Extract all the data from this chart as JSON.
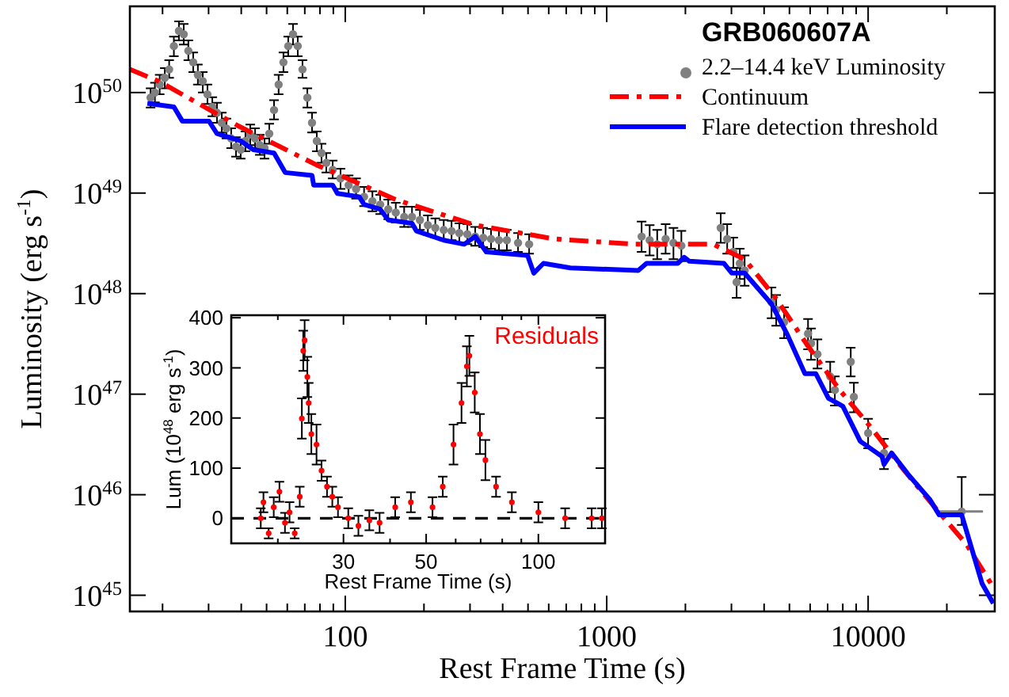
{
  "chart_data": [
    {
      "type": "scatter",
      "xlabel": "Rest Frame Time (s)",
      "ylabel": "Luminosity  (erg s$^{-1}$)",
      "legend_title": "GRB060607A",
      "legend": "top right",
      "log": "xy",
      "xlim": [
        15,
        30500
      ],
      "ylim": [
        6.9e+44,
        7.2e+50
      ],
      "xticks": [
        {
          "value": 20,
          "label": null
        },
        {
          "value": 30,
          "label": null
        },
        {
          "value": 40,
          "label": null
        },
        {
          "value": 50,
          "label": null
        },
        {
          "value": 60,
          "label": null
        },
        {
          "value": 70,
          "label": null
        },
        {
          "value": 80,
          "label": null
        },
        {
          "value": 90,
          "label": null
        },
        100,
        {
          "value": 200,
          "label": null
        },
        {
          "value": 300,
          "label": null
        },
        {
          "value": 400,
          "label": null
        },
        {
          "value": 500,
          "label": null
        },
        {
          "value": 600,
          "label": null
        },
        {
          "value": 700,
          "label": null
        },
        {
          "value": 800,
          "label": null
        },
        {
          "value": 900,
          "label": null
        },
        1000,
        {
          "value": 2000,
          "label": null
        },
        {
          "value": 3000,
          "label": null
        },
        {
          "value": 4000,
          "label": null
        },
        {
          "value": 5000,
          "label": null
        },
        {
          "value": 6000,
          "label": null
        },
        {
          "value": 7000,
          "label": null
        },
        {
          "value": 8000,
          "label": null
        },
        {
          "value": 9000,
          "label": null
        },
        10000,
        {
          "value": 20000,
          "label": null
        }
      ],
      "yticks": [
        {
          "value": 1e+45,
          "label": "10$^{45}$"
        },
        {
          "value": 1e+46,
          "label": "10$^{46}$"
        },
        {
          "value": 1e+47,
          "label": "10$^{47}$"
        },
        {
          "value": 1e+48,
          "label": "10$^{48}$"
        },
        {
          "value": 1e+49,
          "label": "10$^{49}$"
        },
        {
          "value": 1e+50,
          "label": "10$^{50}$"
        }
      ],
      "series": [
        {
          "name": "2.2–14.4 keV Luminosity",
          "color": "#808080",
          "marker": "circle",
          "x": [
            18.0,
            18.7,
            19.5,
            20.4,
            21.2,
            22.1,
            23.1,
            24.1,
            25.1,
            26.2,
            27.3,
            28.5,
            29.7,
            31.0,
            32.3,
            33.7,
            35.1,
            36.6,
            38.2,
            39.8,
            41.5,
            43.3,
            45.2,
            47.1,
            49.1,
            51.2,
            53.4,
            55.6,
            58.0,
            60.5,
            63.1,
            65.8,
            68.6,
            71.6,
            74.6,
            77.8,
            81.1,
            84.6,
            89.5,
            95.9,
            103,
            110,
            118,
            127,
            136,
            146,
            156,
            168,
            180,
            193,
            207,
            221,
            238,
            255,
            273,
            293,
            314,
            337,
            361,
            387,
            415,
            458,
            505,
            1360,
            1460,
            1560,
            1680,
            1800,
            1930,
            2730,
            2890,
            3050,
            3140,
            3230,
            3370,
            4270,
            4450,
            4770,
            5890,
            6050,
            6400,
            7160,
            7460,
            8580,
            8820,
            10000,
            11500,
            22800
          ],
          "values": [
            8.9e+49,
            1e+50,
            1.2e+50,
            1.4e+50,
            1.7e+50,
            2.9e+50,
            4.1e+50,
            3.8e+50,
            2.6e+50,
            2e+50,
            1.5e+50,
            1.3e+50,
            9.6e+49,
            7.2e+49,
            6.3e+49,
            5e+49,
            4.4e+49,
            3.5e+49,
            2.9e+49,
            2.7e+49,
            3.3e+49,
            3.8e+49,
            3.5e+49,
            3e+49,
            2.8e+49,
            3.9e+49,
            6.7e+49,
            1.2e+50,
            2e+50,
            2.9e+50,
            3.8e+50,
            2.9e+50,
            1.7e+50,
            8.9e+49,
            5e+49,
            3.3e+49,
            2.5e+49,
            2e+49,
            1.7e+49,
            1.4e+49,
            1.2e+49,
            1.1e+49,
            9.2e+48,
            8.3e+48,
            7.7e+48,
            6.9e+48,
            6.4e+48,
            5.8e+48,
            5.8e+48,
            5.4e+48,
            4.8e+48,
            4.5e+48,
            4.3e+48,
            4.2e+48,
            4e+48,
            3.9e+48,
            3.7e+48,
            3.6e+48,
            3.5e+48,
            3.4e+48,
            3.4e+48,
            3.2e+48,
            3.1e+48,
            3.7e+48,
            3.4e+48,
            3.1e+48,
            3.5e+48,
            3.2e+48,
            3e+48,
            4.5e+48,
            3.5e+48,
            2.6e+48,
            1.3e+48,
            2e+48,
            1.7e+48,
            8.2e+47,
            6.9e+47,
            5.2e+47,
            4e+47,
            3.2e+47,
            2.5e+47,
            1.5e+47,
            1.1e+47,
            2.1e+47,
            9.4e+46,
            4.1e+46,
            2.6e+46,
            6.8e+45
          ],
          "errors": [
            [
              7.1e+49,
              1.1e+50
            ],
            [
              8e+49,
              1.25e+50
            ],
            [
              9.6e+49,
              1.5e+50
            ],
            [
              1.1e+50,
              1.75e+50
            ],
            [
              1.4e+50,
              2.1e+50
            ],
            [
              2.3e+50,
              3.6e+50
            ],
            [
              3.3e+50,
              5.1e+50
            ],
            [
              3e+50,
              4.8e+50
            ],
            [
              2.1e+50,
              3.3e+50
            ],
            [
              1.6e+50,
              2.5e+50
            ],
            [
              1.2e+50,
              1.9e+50
            ],
            [
              1e+50,
              1.6e+50
            ],
            [
              7.7e+49,
              1.2e+50
            ],
            [
              5.8e+49,
              9e+49
            ],
            [
              5e+49,
              7.9e+49
            ],
            [
              4e+49,
              6.3e+49
            ],
            [
              3.5e+49,
              5.5e+49
            ],
            [
              2.8e+49,
              4.4e+49
            ],
            [
              2.3e+49,
              3.6e+49
            ],
            [
              2.2e+49,
              3.4e+49
            ],
            [
              2.6e+49,
              4.1e+49
            ],
            [
              3e+49,
              4.8e+49
            ],
            [
              2.8e+49,
              4.4e+49
            ],
            [
              2.4e+49,
              3.8e+49
            ],
            [
              2.2e+49,
              3.5e+49
            ],
            [
              3.1e+49,
              4.9e+49
            ],
            [
              5.4e+49,
              8.4e+49
            ],
            [
              9.6e+49,
              1.5e+50
            ],
            [
              1.6e+50,
              2.5e+50
            ],
            [
              2.3e+50,
              3.6e+50
            ],
            [
              3e+50,
              4.8e+50
            ],
            [
              2.3e+50,
              3.6e+50
            ],
            [
              1.4e+50,
              2.1e+50
            ],
            [
              7.1e+49,
              1.1e+50
            ],
            [
              4e+49,
              6.3e+49
            ],
            [
              2.6e+49,
              4.1e+49
            ],
            [
              2e+49,
              3.1e+49
            ],
            [
              1.6e+49,
              2.5e+49
            ],
            [
              1.4e+49,
              2.1e+49
            ],
            [
              1.1e+49,
              1.75e+49
            ],
            [
              9.6e+48,
              1.5e+49
            ],
            [
              8.8e+48,
              1.4e+49
            ],
            [
              7.4e+48,
              1.15e+49
            ],
            [
              6.6e+48,
              1.04e+49
            ],
            [
              6.2e+48,
              9.6e+48
            ],
            [
              5.5e+48,
              8.6e+48
            ],
            [
              5.1e+48,
              8e+48
            ],
            [
              4.6e+48,
              7.3e+48
            ],
            [
              4.6e+48,
              7.3e+48
            ],
            [
              4.3e+48,
              6.8e+48
            ],
            [
              3.8e+48,
              6e+48
            ],
            [
              3.6e+48,
              5.6e+48
            ],
            [
              3.4e+48,
              5.4e+48
            ],
            [
              3.4e+48,
              5.3e+48
            ],
            [
              3.2e+48,
              5e+48
            ],
            [
              3.1e+48,
              4.9e+48
            ],
            [
              3e+48,
              4.6e+48
            ],
            [
              2.9e+48,
              4.5e+48
            ],
            [
              2.8e+48,
              4.4e+48
            ],
            [
              2.7e+48,
              4.3e+48
            ],
            [
              2.7e+48,
              4.3e+48
            ],
            [
              2.6e+48,
              4e+48
            ],
            [
              2.5e+48,
              3.9e+48
            ],
            [
              2.6e+48,
              5.2e+48
            ],
            [
              2.4e+48,
              4.8e+48
            ],
            [
              2.2e+48,
              4.3e+48
            ],
            [
              2.5e+48,
              4.9e+48
            ],
            [
              2.2e+48,
              4.5e+48
            ],
            [
              2.1e+48,
              4.2e+48
            ],
            [
              3.2e+48,
              6.3e+48
            ],
            [
              2.5e+48,
              4.9e+48
            ],
            [
              1.8e+48,
              3.6e+48
            ],
            [
              9.1e+47,
              1.8e+48
            ],
            [
              1.4e+48,
              2.8e+48
            ],
            [
              1.2e+48,
              2.4e+48
            ],
            [
              5.7e+47,
              1.15e+48
            ],
            [
              4.8e+47,
              9.7e+47
            ],
            [
              3.6e+47,
              7.3e+47
            ],
            [
              2.8e+47,
              5.6e+47
            ],
            [
              2.2e+47,
              4.5e+47
            ],
            [
              1.8e+47,
              3.5e+47
            ],
            [
              1.05e+47,
              2.1e+47
            ],
            [
              7.7e+46,
              1.5e+47
            ],
            [
              1.5e+47,
              2.9e+47
            ],
            [
              6.6e+46,
              1.3e+47
            ],
            [
              2.9e+46,
              5.7e+46
            ],
            [
              1.8e+46,
              3.6e+46
            ],
            [
              5e+45,
              1.5e+46
            ]
          ],
          "xerrors": [
            null,
            null,
            null,
            null,
            null,
            null,
            null,
            null,
            null,
            null,
            null,
            null,
            null,
            null,
            null,
            null,
            null,
            null,
            null,
            null,
            null,
            null,
            null,
            null,
            null,
            null,
            null,
            null,
            null,
            null,
            null,
            null,
            null,
            null,
            null,
            null,
            null,
            null,
            null,
            null,
            null,
            null,
            null,
            null,
            null,
            null,
            null,
            null,
            null,
            null,
            null,
            null,
            null,
            null,
            null,
            null,
            null,
            null,
            null,
            null,
            null,
            null,
            null,
            null,
            null,
            null,
            null,
            null,
            null,
            null,
            null,
            null,
            null,
            null,
            null,
            null,
            null,
            null,
            null,
            null,
            null,
            null,
            null,
            null,
            null,
            null,
            null,
            [
              18000,
              27500
            ]
          ]
        },
        {
          "name": "Continuum",
          "type": "line",
          "color": "#ff0000",
          "line_style": "dashed",
          "x": [
            15.0,
            19.3,
            38.7,
            77.8,
            156,
            314,
            631,
            1270,
            2550,
            3370,
            4450,
            5890,
            7780,
            10300,
            13600,
            18000,
            23800,
            30100
          ],
          "values": [
            1.7e+50,
            1.3e+50,
            4.7e+49,
            1.9e+49,
            8.6e+48,
            4.8e+48,
            3.5e+48,
            3.1e+48,
            3.1e+48,
            2.2e+48,
            8.9e+47,
            3e+47,
            1.1e+47,
            4.6e+46,
            1.8e+46,
            7.5e+45,
            3.2e+45,
            1.2e+45
          ]
        },
        {
          "name": "Flare detection threshold",
          "type": "line",
          "color": "#0000ff",
          "line_style": "solid",
          "x": [
            17.5,
            22.1,
            23.8,
            30.1,
            32.3,
            39.8,
            44.5,
            53.4,
            58.9,
            74.6,
            75.7,
            89.5,
            93.3,
            113,
            118,
            136,
            146,
            180,
            187,
            238,
            285,
            314,
            346,
            498,
            526,
            573,
            726,
            1320,
            1420,
            1870,
            1980,
            2070,
            2810,
            3010,
            3370,
            4270,
            4910,
            5730,
            6310,
            7050,
            8000,
            9330,
            11300,
            11500,
            12300,
            14200,
            17200,
            18700,
            22800,
            27300,
            30100
          ],
          "values": [
            7.8e+49,
            7.2e+49,
            5.2e+49,
            5.2e+49,
            3.9e+49,
            3.3e+49,
            2.7e+49,
            2.5e+49,
            1.6e+49,
            1.5e+49,
            1.2e+49,
            1.2e+49,
            9.9e+48,
            9.2e+48,
            7.7e+48,
            6.9e+48,
            5.4e+48,
            5e+48,
            4.2e+48,
            3.4e+48,
            3.1e+48,
            3.7e+48,
            2.6e+48,
            2.4e+48,
            1.6e+48,
            2e+48,
            1.8e+48,
            1.7e+48,
            2e+48,
            2e+48,
            2.3e+48,
            2.1e+48,
            2e+48,
            1.6e+48,
            1.6e+48,
            7.9e+47,
            3.9e+47,
            1.6e+47,
            1.6e+47,
            9.1e+46,
            7.6e+46,
            3.4e+46,
            2.4e+46,
            2e+46,
            2.6e+46,
            1.6e+46,
            9e+45,
            6.3e+45,
            6.3e+45,
            1.3e+45,
            8.3e+44
          ]
        }
      ]
    },
    {
      "type": "scatter",
      "xlabel": "Rest Frame Time (s)",
      "ylabel": "Lum  (10$^{48}$ erg s$^{-1}$)",
      "legend": "top right",
      "log": "x",
      "marker": "circle",
      "xlim": [
        15,
        151
      ],
      "ylim": [
        -50,
        405
      ],
      "xticks": [
        {
          "value": 20,
          "label": null
        },
        30,
        {
          "value": 40,
          "label": null
        },
        50,
        {
          "value": 60,
          "label": null
        },
        {
          "value": 70,
          "label": null
        },
        {
          "value": 80,
          "label": null
        },
        {
          "value": 90,
          "label": null
        },
        100
      ],
      "yticks": [
        0,
        100,
        200,
        300,
        400
      ],
      "ref_lines": [
        {
          "axis": "y",
          "value": 0,
          "label": null,
          "color": "#000000",
          "line_style": "dashed"
        }
      ],
      "series": [
        {
          "name": "Residuals",
          "color": "#ff0000",
          "x": [
            18.0,
            18.3,
            18.9,
            19.5,
            20.2,
            20.9,
            21.5,
            22.2,
            22.9,
            23.2,
            23.4,
            23.6,
            24.0,
            24.2,
            24.6,
            25.4,
            26.2,
            27.1,
            28.0,
            29.0,
            30.9,
            32.9,
            35.2,
            37.5,
            41.3,
            45.5,
            52.0,
            55.4,
            59.2,
            62.2,
            64.3,
            65.3,
            67.5,
            69.7,
            72.1,
            77.0,
            84.9,
            100,
            118,
            139,
            148
          ],
          "values": [
            0,
            32,
            -30,
            22,
            53,
            -9,
            12,
            -30,
            43,
            199,
            334,
            355,
            282,
            230,
            168,
            147,
            95,
            63,
            43,
            22,
            0,
            -15,
            -4,
            -9,
            22,
            32,
            22,
            63,
            147,
            230,
            303,
            324,
            251,
            168,
            116,
            63,
            32,
            12,
            0,
            0,
            0
          ],
          "errors": [
            20,
            20,
            10,
            20,
            20,
            20,
            20,
            10,
            20,
            40,
            40,
            40,
            40,
            40,
            40,
            40,
            20,
            20,
            20,
            20,
            20,
            20,
            20,
            20,
            20,
            20,
            20,
            20,
            40,
            40,
            40,
            40,
            40,
            40,
            40,
            20,
            20,
            20,
            20,
            20,
            20
          ]
        }
      ]
    }
  ]
}
